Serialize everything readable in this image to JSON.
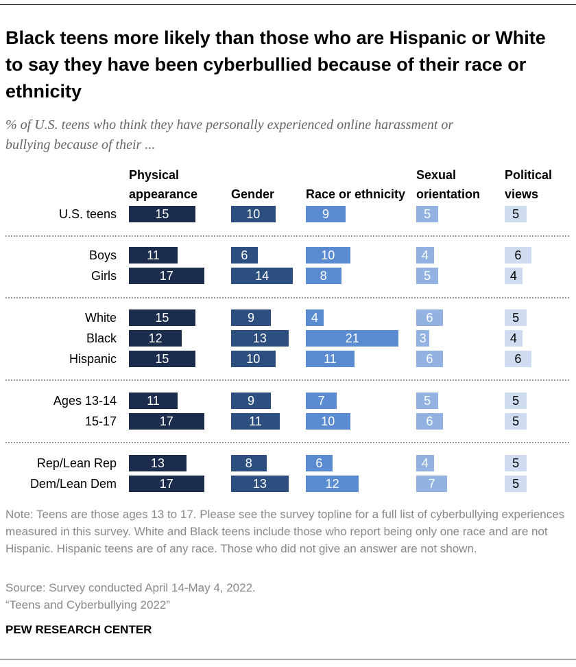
{
  "chart_data": {
    "type": "bar",
    "title": "Black teens more likely than those who are Hispanic or White to say they have been cyberbullied because of their race or ethnicity",
    "subtitle": "% of U.S. teens who think they have personally experienced online harassment or bullying because of their ...",
    "categories": [
      "U.S. teens",
      "Boys",
      "Girls",
      "White",
      "Black",
      "Hispanic",
      "Ages 13-14",
      "15-17",
      "Rep/Lean Rep",
      "Dem/Lean Dem"
    ],
    "series": [
      {
        "name": "Physical appearance",
        "color": "#1c2c4c",
        "label_color": "#ffffff",
        "values": [
          15,
          11,
          17,
          15,
          12,
          15,
          11,
          17,
          13,
          17
        ]
      },
      {
        "name": "Gender",
        "color": "#2d4f80",
        "label_color": "#ffffff",
        "values": [
          10,
          6,
          14,
          9,
          13,
          10,
          9,
          11,
          8,
          13
        ]
      },
      {
        "name": "Race or ethnicity",
        "color": "#5a8ad0",
        "label_color": "#ffffff",
        "values": [
          9,
          10,
          8,
          4,
          21,
          11,
          7,
          10,
          6,
          12
        ]
      },
      {
        "name": "Sexual orientation",
        "color": "#92b3e2",
        "label_color": "#ffffff",
        "values": [
          5,
          4,
          5,
          6,
          3,
          6,
          5,
          6,
          4,
          7
        ]
      },
      {
        "name": "Political views",
        "color": "#cfdbf0",
        "label_color": "#000000",
        "values": [
          5,
          6,
          4,
          5,
          4,
          6,
          5,
          5,
          5,
          5
        ]
      }
    ],
    "note": "Note: Teens are those ages 13 to 17. Please see the survey topline for a full list of cyberbullying experiences measured in this survey. White and Black teens include those who report being only one race and are not Hispanic. Hispanic teens are of any race. Those who did not give an answer are not shown.",
    "source": "Source: Survey conducted April 14-May 4, 2022.",
    "citation": "“Teens and Cyberbullying 2022”",
    "brand": "PEW RESEARCH CENTER"
  }
}
